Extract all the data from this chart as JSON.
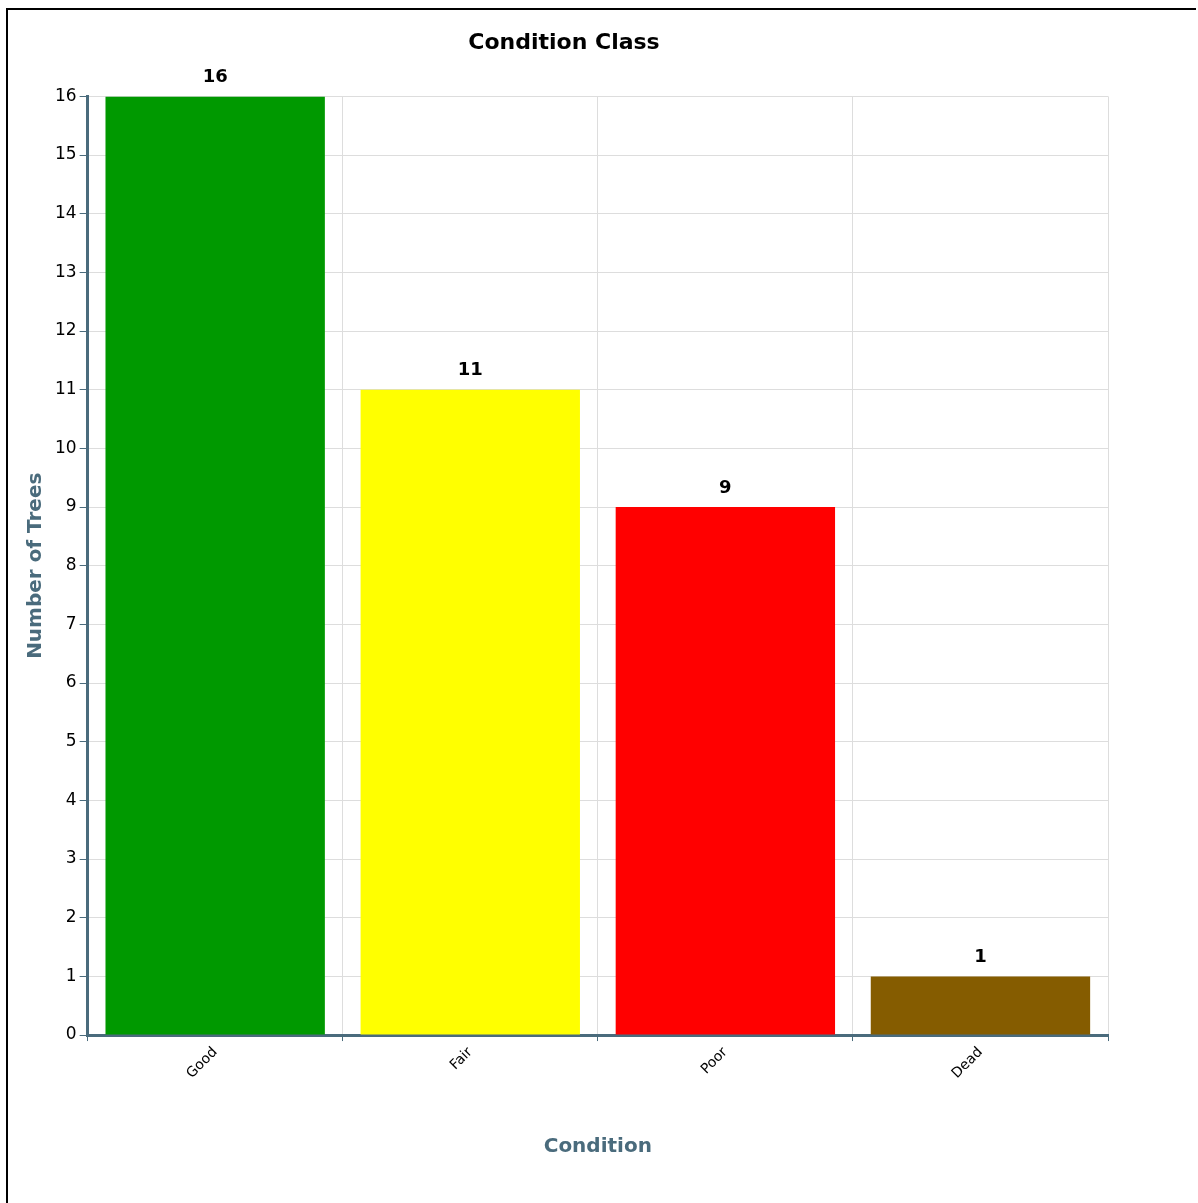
{
  "chart_data": {
    "type": "bar",
    "title": "Condition Class",
    "xlabel": "Condition",
    "ylabel": "Number of Trees",
    "categories": [
      "Good",
      "Fair",
      "Poor",
      "Dead"
    ],
    "values": [
      16,
      11,
      9,
      1
    ],
    "colors": [
      "#009900",
      "#ffff00",
      "#ff0000",
      "#855c00"
    ],
    "ylim": [
      0,
      16
    ],
    "yticks": [
      0,
      1,
      2,
      3,
      4,
      5,
      6,
      7,
      8,
      9,
      10,
      11,
      12,
      13,
      14,
      15,
      16
    ],
    "grid": true,
    "data_labels": true
  }
}
